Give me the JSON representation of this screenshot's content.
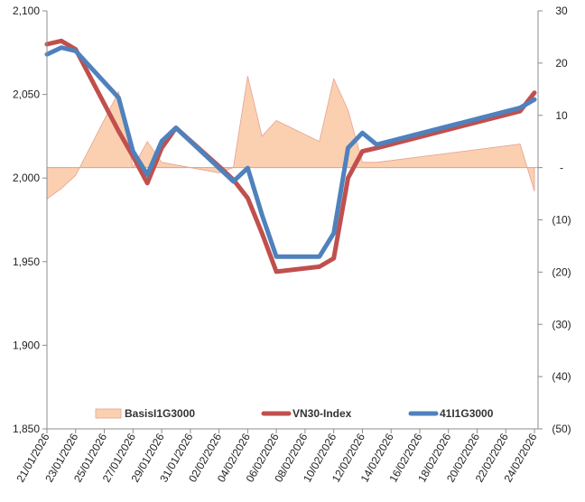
{
  "chart_data": {
    "type": "line",
    "x": [
      "21/01/2026",
      "22/01/2026",
      "23/01/2026",
      "26/01/2026",
      "27/01/2026",
      "28/01/2026",
      "29/01/2026",
      "30/01/2026",
      "02/02/2026",
      "03/02/2026",
      "04/02/2026",
      "05/02/2026",
      "06/02/2026",
      "09/02/2026",
      "10/02/2026",
      "11/02/2026",
      "12/02/2026",
      "13/02/2026",
      "23/02/2026",
      "24/02/2026"
    ],
    "x_tick_labels": [
      "21/01/2026",
      "23/01/2026",
      "25/01/2026",
      "27/01/2026",
      "29/01/2026",
      "31/01/2026",
      "02/02/2026",
      "04/02/2026",
      "06/02/2026",
      "08/02/2026",
      "10/02/2026",
      "12/02/2026",
      "14/02/2026",
      "16/02/2026",
      "18/02/2026",
      "20/02/2026",
      "22/02/2026",
      "24/02/2026"
    ],
    "left_axis": {
      "ylim": [
        1850,
        2100
      ],
      "ticks": [
        "1,850",
        "1,900",
        "1,950",
        "2,000",
        "2,050",
        "2,100"
      ]
    },
    "right_axis": {
      "ylim": [
        -50,
        30
      ],
      "ticks": [
        "(50)",
        "(40)",
        "(30)",
        "(20)",
        "(10)",
        "-",
        "10",
        "20",
        "30"
      ]
    },
    "series": [
      {
        "name": "BasisI1G3000",
        "type": "area",
        "axis": "right",
        "color": "#fbd0b0",
        "edge_color": "#e6a090",
        "values": [
          -6,
          -4,
          -1.5,
          14.5,
          0,
          5,
          1,
          0.5,
          -1,
          0,
          17.5,
          6,
          9,
          5,
          17,
          11,
          1,
          1,
          4.5,
          -4.5
        ]
      },
      {
        "name": "VN30-Index",
        "type": "line",
        "axis": "left",
        "color": "#c0504d",
        "values": [
          2080,
          2082,
          2077,
          2028,
          2013,
          1997,
          2018,
          2030,
          2007,
          1999,
          1988,
          1967,
          1944,
          1947,
          1952,
          2000,
          2016,
          2018,
          2040,
          2051
        ]
      },
      {
        "name": "41I1G3000",
        "type": "line",
        "axis": "left",
        "color": "#4f81bd",
        "values": [
          2074,
          2078,
          2076,
          2048,
          2016,
          2002,
          2022,
          2030,
          2006,
          1998,
          2006,
          1978,
          1953,
          1953,
          1967,
          2018,
          2027,
          2020,
          2042,
          2047
        ]
      }
    ],
    "legend_position": "bottom-center",
    "grid": false
  }
}
